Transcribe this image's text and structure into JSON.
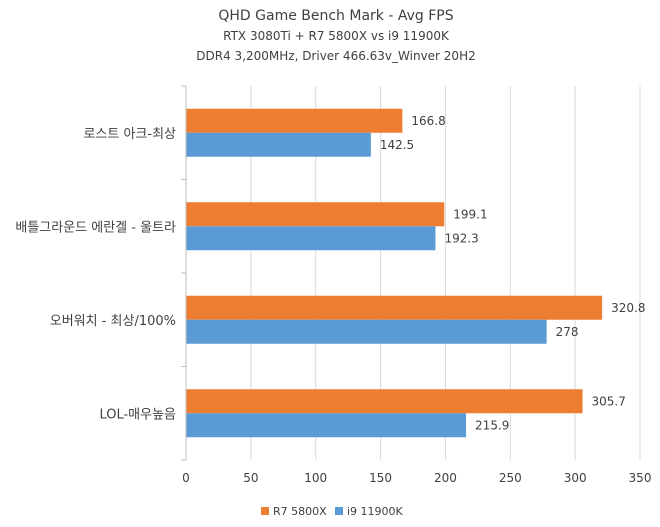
{
  "chart_data": {
    "type": "bar",
    "orientation": "horizontal",
    "title": "QHD Game Bench Mark - Avg FPS",
    "subtitle_lines": [
      "RTX 3080Ti + R7 5800X vs i9 11900K",
      "DDR4 3,200MHz, Driver 466.63v_Winver 20H2"
    ],
    "categories": [
      "로스트 아크-최상",
      "배틀그라운드 에란겔 - 울트라",
      "오버워치 - 최상/100%",
      "LOL-매우높음"
    ],
    "series": [
      {
        "name": "R7 5800X",
        "color": "#ED7D31",
        "values": [
          166.8,
          199.1,
          320.8,
          305.7
        ]
      },
      {
        "name": "i9 11900K",
        "color": "#5B9BD5",
        "values": [
          142.5,
          192.3,
          278,
          215.9
        ]
      }
    ],
    "xlim": [
      0,
      350
    ],
    "xticks": [
      0,
      50,
      100,
      150,
      200,
      250,
      300,
      350
    ],
    "grid": "vertical",
    "legend_position": "bottom"
  }
}
